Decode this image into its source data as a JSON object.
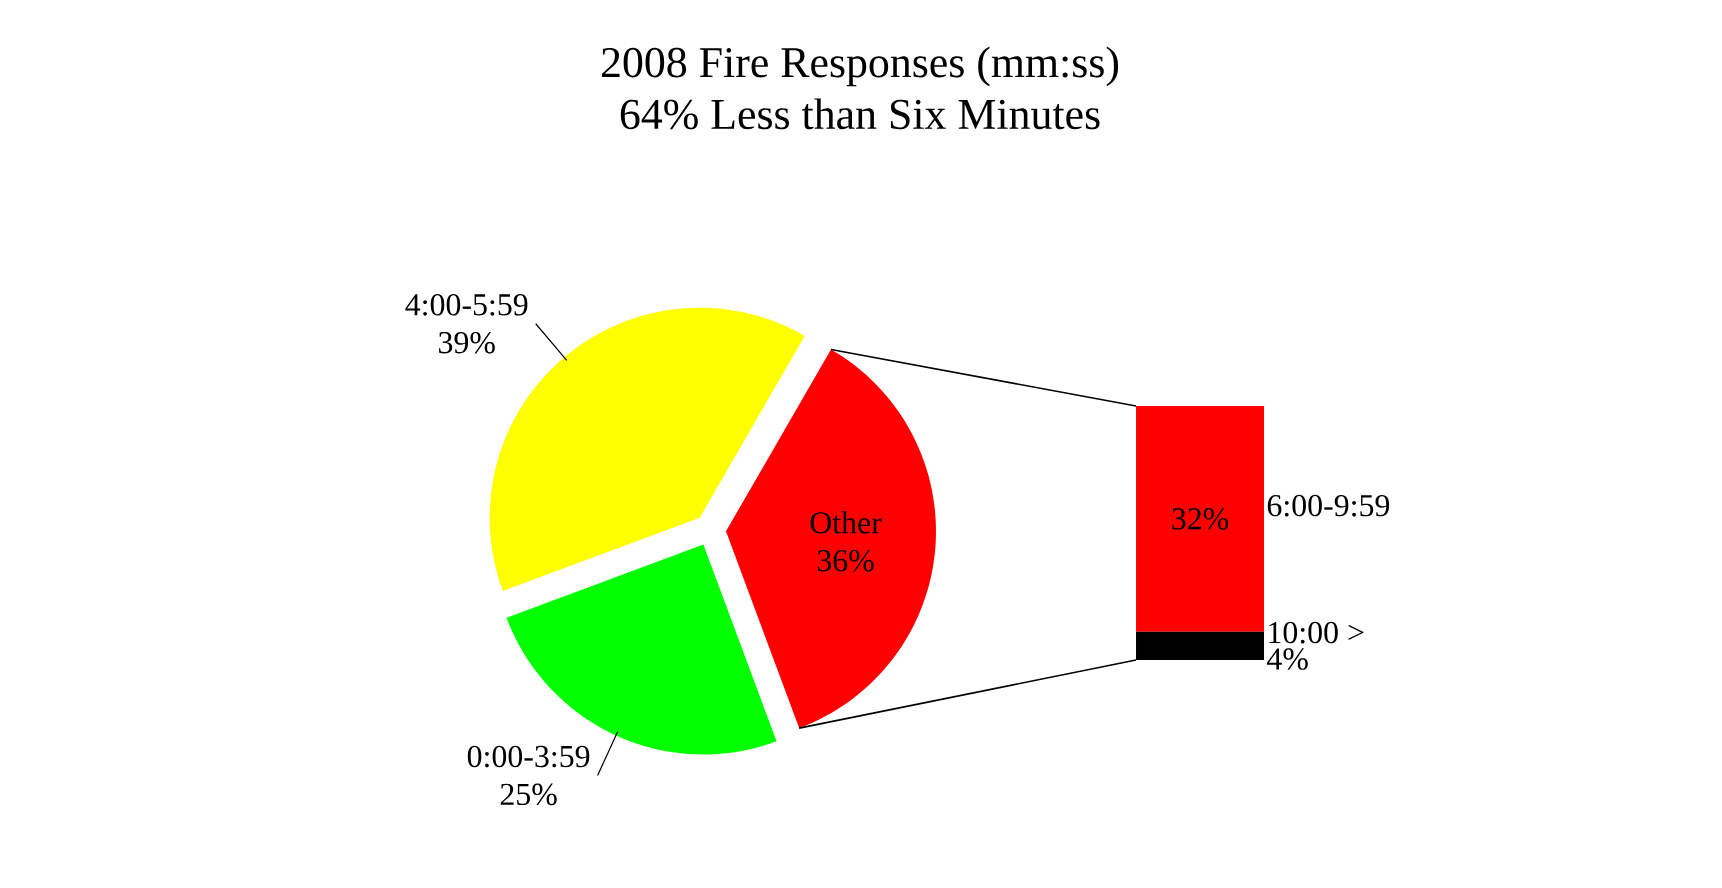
{
  "chart_data": [
    {
      "type": "pie",
      "title": "2008 Fire Responses (mm:ss)",
      "subtitle": "64% Less than Six Minutes",
      "categories": [
        "4:00-5:59",
        "0:00-3:59",
        "Other"
      ],
      "values": [
        39,
        25,
        36
      ],
      "colors": [
        "#ffff00",
        "#00ff00",
        "#ff0000"
      ],
      "value_labels": [
        "39%",
        "25%",
        "36%"
      ]
    },
    {
      "type": "bar",
      "stacked": true,
      "categories": [
        null
      ],
      "series": [
        {
          "name": "10:00 >",
          "color": "#000000",
          "values": [
            4
          ],
          "value_labels": [
            "4%"
          ]
        },
        {
          "name": "6:00-9:59",
          "color": "#ff0000",
          "values": [
            32
          ],
          "value_labels": [
            "32%"
          ]
        }
      ]
    }
  ]
}
